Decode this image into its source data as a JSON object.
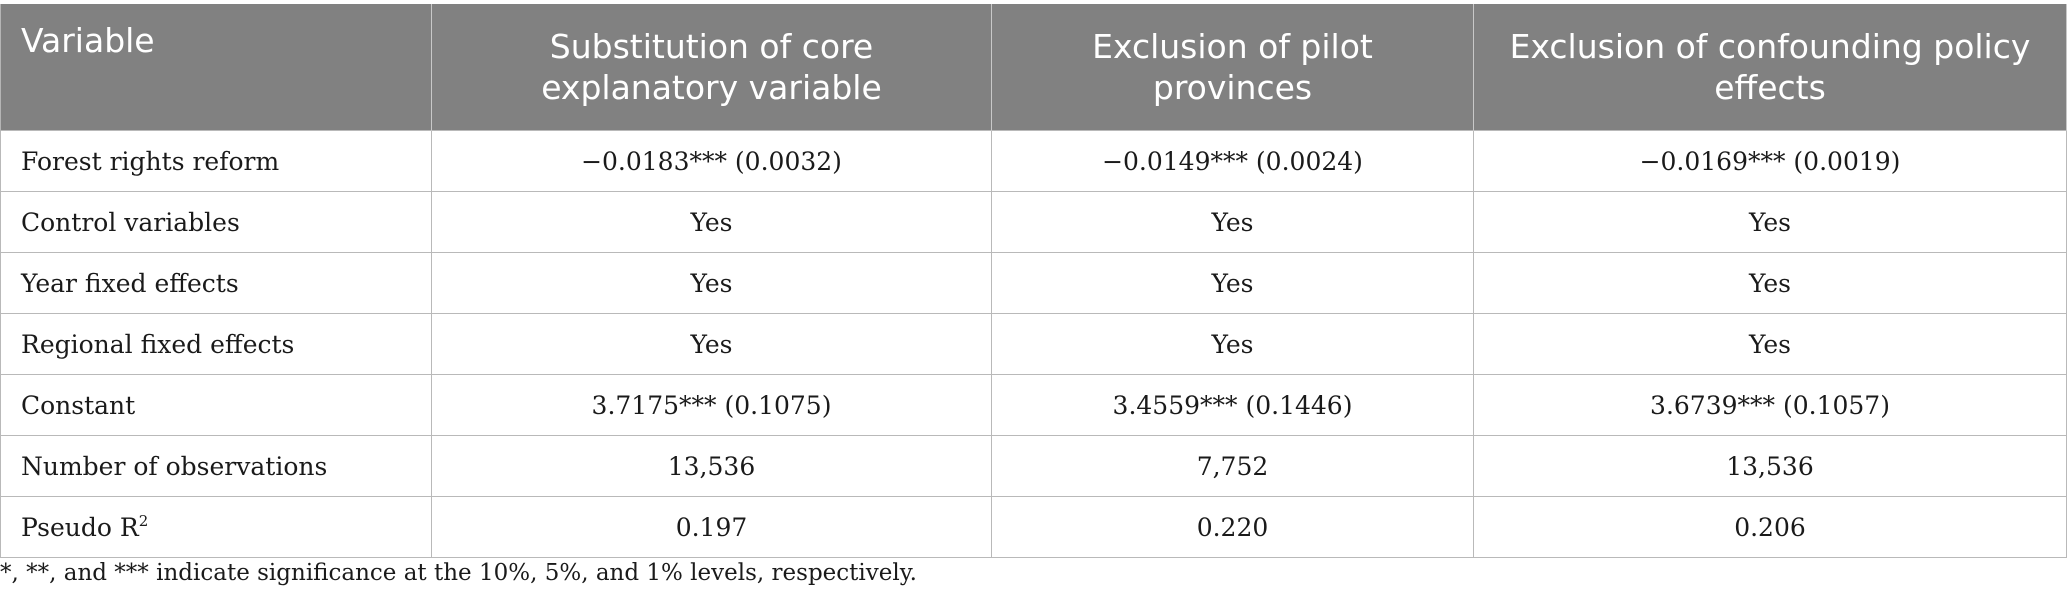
{
  "table": {
    "headers": [
      "Variable",
      "Substitution of core explanatory variable",
      "Exclusion of pilot provinces",
      "Exclusion of confounding policy effects"
    ],
    "rows": [
      [
        "Forest rights reform",
        "−0.0183*** (0.0032)",
        "−0.0149*** (0.0024)",
        "−0.0169*** (0.0019)"
      ],
      [
        "Control variables",
        "Yes",
        "Yes",
        "Yes"
      ],
      [
        "Year fixed effects",
        "Yes",
        "Yes",
        "Yes"
      ],
      [
        "Regional fixed effects",
        "Yes",
        "Yes",
        "Yes"
      ],
      [
        "Constant",
        "3.7175*** (0.1075)",
        "3.4559*** (0.1446)",
        "3.6739*** (0.1057)"
      ],
      [
        "Number of observations",
        "13,536",
        "7,752",
        "13,536"
      ],
      [
        "Pseudo R",
        "0.197",
        "0.220",
        "0.206"
      ]
    ],
    "pseudo_r_superscript": "2"
  },
  "footnote": "*, **, and *** indicate significance at the 10%, 5%, and 1% levels, respectively."
}
